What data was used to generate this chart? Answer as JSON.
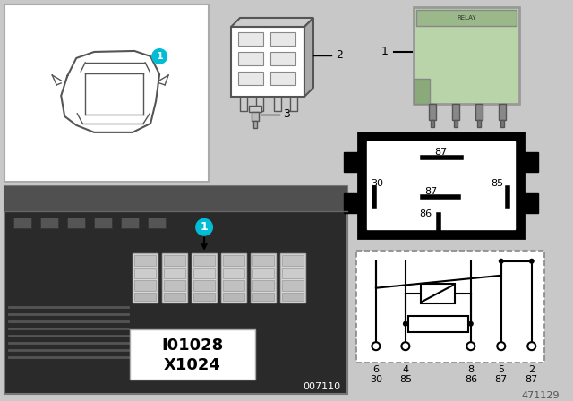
{
  "bg_color": "#c8c8c8",
  "white": "#ffffff",
  "black": "#000000",
  "light_green": "#b8d4a8",
  "label_1_color": "#00bcd4",
  "fig_number": "471129",
  "part_number_photo": "007110",
  "connector_ids": [
    "I01028",
    "X1024"
  ],
  "pin_diagram_pins": [
    "87",
    "30",
    "87",
    "85",
    "86"
  ],
  "schematic_pos": [
    "6",
    "4",
    "8",
    "5",
    "2"
  ],
  "schematic_names": [
    "30",
    "85",
    "86",
    "87",
    "87"
  ],
  "title_font_size": 9
}
